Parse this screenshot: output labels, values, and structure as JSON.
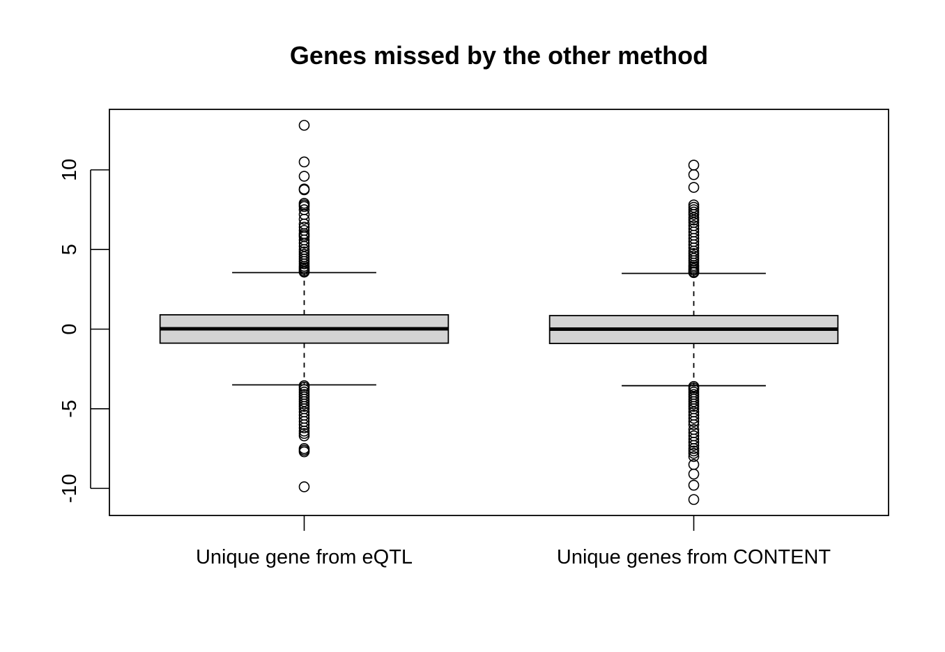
{
  "chart_data": {
    "type": "boxplot",
    "title": "Genes missed by the other method",
    "xlabel": "",
    "ylabel": "",
    "ylim": [
      -11.7,
      13.8
    ],
    "y_ticks": [
      -10,
      -5,
      0,
      5,
      10
    ],
    "y_tick_labels": [
      "-10",
      "-5",
      "0",
      "5",
      "10"
    ],
    "grid": false,
    "box_fill": "#d3d3d3",
    "categories": [
      "Unique gene from eQTL",
      "Unique genes from CONTENT"
    ],
    "boxes": [
      {
        "category": "Unique gene from eQTL",
        "lower_whisker": -3.5,
        "q1": -0.88,
        "median": 0.02,
        "q3": 0.9,
        "upper_whisker": 3.55,
        "outliers": [
          12.8,
          10.5,
          9.6,
          8.8,
          8.75,
          7.9,
          7.8,
          7.7,
          7.5,
          7.2,
          6.9,
          6.6,
          6.4,
          6.2,
          6.0,
          5.9,
          5.8,
          5.6,
          5.4,
          5.2,
          5.0,
          4.85,
          4.7,
          4.55,
          4.4,
          4.25,
          4.1,
          3.95,
          3.85,
          3.75,
          3.65,
          3.58,
          -3.55,
          -3.65,
          -3.8,
          -3.95,
          -4.1,
          -4.25,
          -4.4,
          -4.55,
          -4.7,
          -4.85,
          -5.0,
          -5.2,
          -5.4,
          -5.6,
          -5.8,
          -6.0,
          -6.2,
          -6.4,
          -6.55,
          -6.7,
          -7.5,
          -7.6,
          -7.7,
          -9.9
        ]
      },
      {
        "category": "Unique genes from CONTENT",
        "lower_whisker": -3.55,
        "q1": -0.9,
        "median": 0.0,
        "q3": 0.85,
        "upper_whisker": 3.5,
        "outliers": [
          10.3,
          9.7,
          8.9,
          7.8,
          7.65,
          7.5,
          7.35,
          7.2,
          7.0,
          6.85,
          6.7,
          6.5,
          6.3,
          6.1,
          5.9,
          5.7,
          5.5,
          5.3,
          5.1,
          4.9,
          4.75,
          4.6,
          4.45,
          4.3,
          4.15,
          4.0,
          3.9,
          3.8,
          3.7,
          3.6,
          3.55,
          -3.6,
          -3.7,
          -3.8,
          -3.95,
          -4.1,
          -4.25,
          -4.4,
          -4.55,
          -4.7,
          -4.85,
          -5.0,
          -5.2,
          -5.4,
          -5.6,
          -5.8,
          -6.0,
          -6.3,
          -6.5,
          -6.7,
          -6.9,
          -7.1,
          -7.3,
          -7.5,
          -7.65,
          -7.8,
          -8.0,
          -8.5,
          -9.1,
          -9.8,
          -10.7
        ]
      }
    ]
  }
}
